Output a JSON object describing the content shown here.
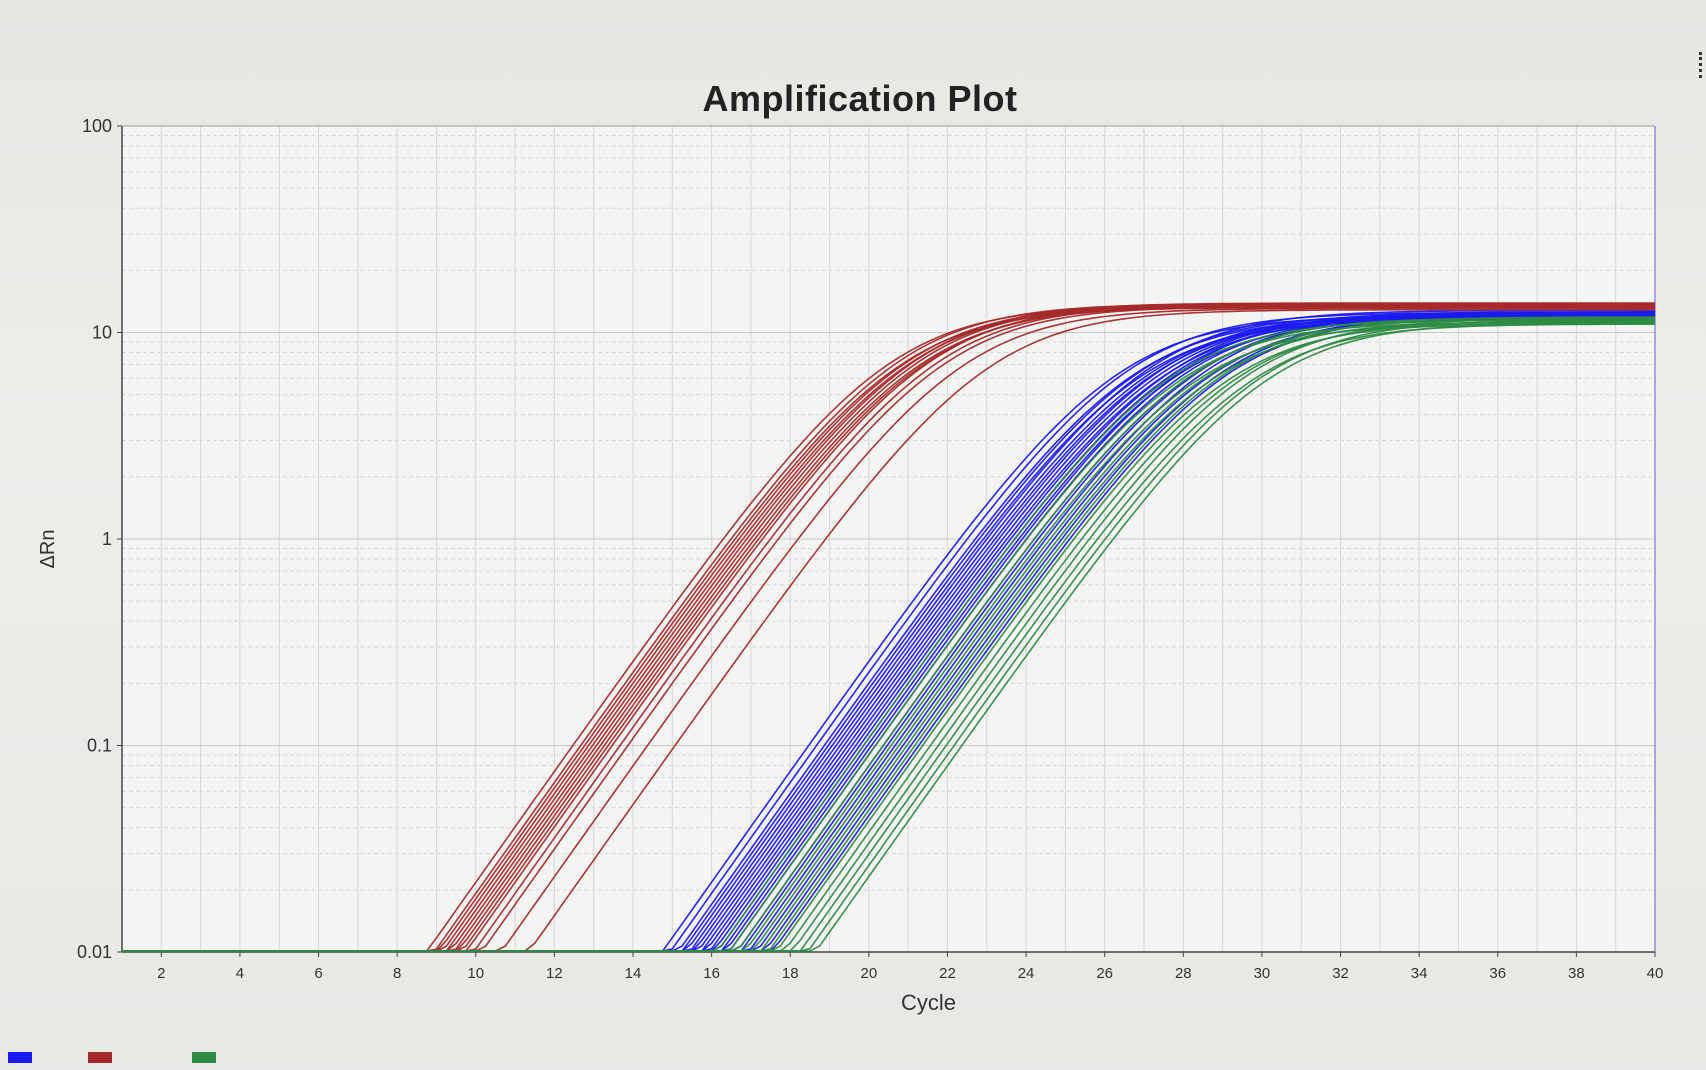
{
  "chart_data": {
    "type": "line",
    "title": "Amplification Plot",
    "xlabel": "Cycle",
    "ylabel": "ΔRn",
    "xlim": [
      1,
      40
    ],
    "ylim": [
      0.01,
      100
    ],
    "yscale": "log",
    "grid": true,
    "x_ticks": [
      "2",
      "4",
      "6",
      "8",
      "10",
      "12",
      "14",
      "16",
      "18",
      "20",
      "22",
      "24",
      "26",
      "28",
      "30",
      "32",
      "34",
      "36",
      "38",
      "40"
    ],
    "y_ticks": [
      "0.01",
      "0.1",
      "1",
      "10",
      "100"
    ],
    "legend_placement": "bottom-left",
    "series": [
      {
        "name": "",
        "color": "#1a1aee",
        "ct_values": [
          19.6,
          19.8,
          20.0,
          20.1,
          20.2,
          20.3,
          20.4,
          20.5,
          20.6,
          20.7,
          20.8,
          20.9,
          21.0,
          21.1,
          21.2,
          21.3,
          21.5,
          21.6,
          21.8,
          22.0,
          22.2,
          22.4
        ],
        "plateau": [
          12,
          12.5,
          11.8,
          12.2,
          11.5,
          12.8,
          12,
          11.9,
          12.4,
          12.1,
          11.7,
          12.3,
          12,
          11.6,
          12.6,
          12,
          11.8,
          12.2,
          12.5,
          11.9,
          12.1,
          12
        ]
      },
      {
        "name": "",
        "color": "#a52a2a",
        "ct_values": [
          13.6,
          13.8,
          13.9,
          14.0,
          14.1,
          14.2,
          14.3,
          14.4,
          14.5,
          14.6,
          14.8,
          15.0,
          15.5,
          16.2
        ],
        "plateau": [
          13.5,
          13.8,
          13.2,
          13.6,
          13.4,
          13.9,
          13.7,
          13.3,
          13.5,
          13.8,
          13.6,
          13.4,
          13.1,
          12.9
        ]
      },
      {
        "name": "",
        "color": "#2e8b44",
        "ct_values": [
          21.0,
          21.3,
          21.5,
          21.7,
          21.9,
          22.1,
          22.3,
          22.5,
          22.7,
          22.9,
          23.1,
          23.3,
          23.5
        ],
        "plateau": [
          11.5,
          11.2,
          11.8,
          11.0,
          11.6,
          11.3,
          11.9,
          11.1,
          11.4,
          11.7,
          11.0,
          11.5,
          11.2
        ]
      }
    ],
    "legend": [
      {
        "label": "",
        "color": "#1a1aee"
      },
      {
        "label": "",
        "color": "#a52a2a"
      },
      {
        "label": "",
        "color": "#2e8b44"
      }
    ]
  }
}
